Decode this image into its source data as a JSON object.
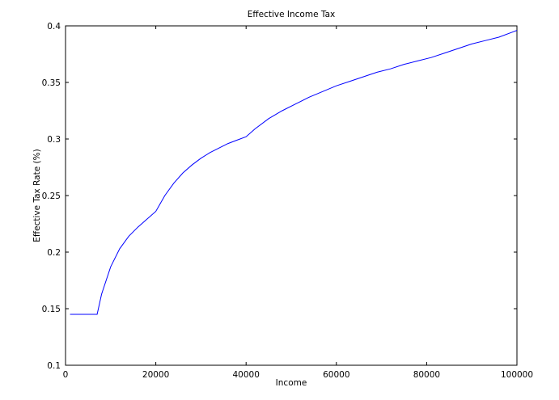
{
  "chart_data": {
    "type": "line",
    "title": "Effective Income Tax",
    "xlabel": "Income",
    "ylabel": "Effective Tax Rate (%)",
    "xlim": [
      0,
      100000
    ],
    "ylim": [
      0.1,
      0.4
    ],
    "x_ticks": [
      0,
      20000,
      40000,
      60000,
      80000,
      100000
    ],
    "x_tick_labels": [
      "0",
      "20000",
      "40000",
      "60000",
      "80000",
      "100000"
    ],
    "y_ticks": [
      0.1,
      0.15,
      0.2,
      0.25,
      0.3,
      0.35,
      0.4
    ],
    "y_tick_labels": [
      "0.1",
      "0.15",
      "0.2",
      "0.25",
      "0.3",
      "0.35",
      "0.4"
    ],
    "grid": false,
    "legend": "none",
    "series": [
      {
        "color": "#0000ff",
        "x": [
          1000,
          7000,
          8000,
          10000,
          12000,
          14000,
          16000,
          18000,
          20000,
          22000,
          24000,
          26000,
          28000,
          30000,
          32000,
          34000,
          36000,
          38000,
          40000,
          42000,
          45000,
          48000,
          51000,
          54000,
          57000,
          60000,
          63000,
          66000,
          69000,
          72000,
          75000,
          78000,
          81000,
          84000,
          87000,
          90000,
          93000,
          96000,
          100000
        ],
        "y": [
          0.145,
          0.145,
          0.163,
          0.187,
          0.203,
          0.214,
          0.222,
          0.229,
          0.236,
          0.25,
          0.261,
          0.27,
          0.277,
          0.283,
          0.288,
          0.292,
          0.296,
          0.299,
          0.302,
          0.309,
          0.318,
          0.325,
          0.331,
          0.337,
          0.342,
          0.347,
          0.351,
          0.355,
          0.359,
          0.362,
          0.366,
          0.369,
          0.372,
          0.376,
          0.38,
          0.384,
          0.387,
          0.39,
          0.396
        ]
      }
    ]
  }
}
